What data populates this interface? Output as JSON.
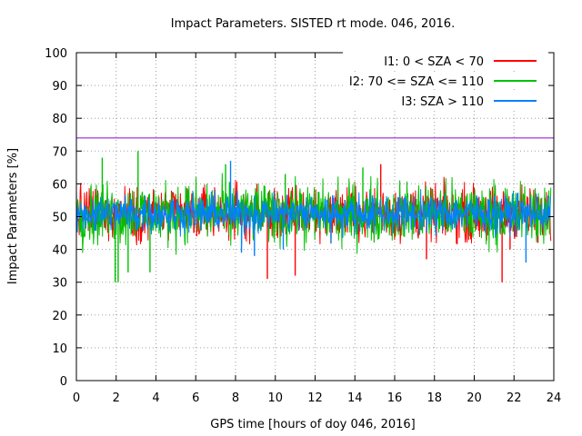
{
  "chart_data": {
    "type": "line",
    "title": "Impact Parameters. SISTED rt mode. 046, 2016.",
    "xlabel": "GPS time [hours of doy 046, 2016]",
    "ylabel": "Impact Parameters [%]",
    "xlim": [
      0,
      24
    ],
    "ylim": [
      0,
      100
    ],
    "xticks": [
      0,
      2,
      4,
      6,
      8,
      10,
      12,
      14,
      16,
      18,
      20,
      22,
      24
    ],
    "yticks": [
      0,
      10,
      20,
      30,
      40,
      50,
      60,
      70,
      80,
      90,
      100
    ],
    "grid": true,
    "legend_position": "top-right",
    "reference_line": {
      "y": 74,
      "color": "#9400d3"
    },
    "series": [
      {
        "name": "I1: 0 < SZA < 70",
        "color": "#ff0000",
        "center": 51,
        "spread": 7,
        "outliers": [
          [
            6.05,
            44
          ],
          [
            9.6,
            31
          ],
          [
            11.0,
            32
          ],
          [
            15.3,
            66
          ],
          [
            17.6,
            37
          ],
          [
            21.4,
            30
          ],
          [
            21.8,
            40
          ],
          [
            23.2,
            42
          ]
        ]
      },
      {
        "name": "I2: 70 <= SZA <= 110",
        "color": "#00c000",
        "center": 51,
        "spread": 8,
        "outliers": [
          [
            1.3,
            68
          ],
          [
            1.95,
            30
          ],
          [
            2.1,
            30
          ],
          [
            3.1,
            70
          ],
          [
            2.6,
            33
          ],
          [
            3.7,
            33
          ],
          [
            7.5,
            66
          ],
          [
            10.5,
            63
          ],
          [
            14.4,
            65
          ]
        ]
      },
      {
        "name": "I3: SZA > 110",
        "color": "#0080ff",
        "center": 51,
        "spread": 5,
        "outliers": [
          [
            7.75,
            67
          ],
          [
            8.3,
            39
          ],
          [
            8.95,
            38
          ],
          [
            10.4,
            40
          ],
          [
            12.8,
            42
          ],
          [
            22.6,
            36
          ]
        ]
      }
    ]
  }
}
